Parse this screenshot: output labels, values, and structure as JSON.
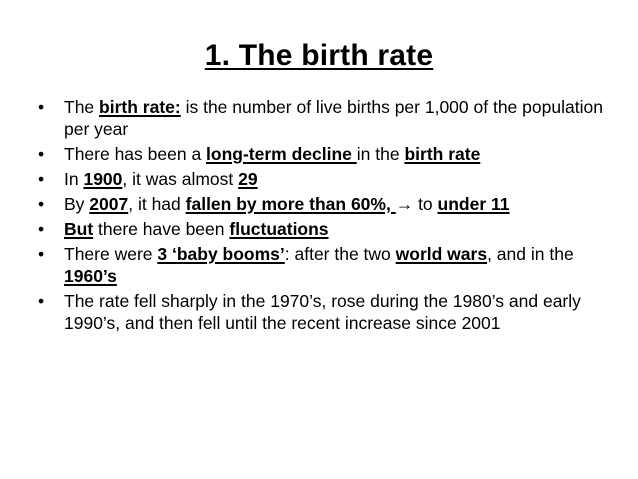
{
  "slide": {
    "title": "1. The birth rate",
    "bullet_glyph": "•",
    "bullets": [
      {
        "s1": "The ",
        "s2": "birth rate:",
        "s3": " is the number of live births per 1,000 of the population per year"
      },
      {
        "s1": "There has been a ",
        "s2": "long-term decline ",
        "s3": "in the ",
        "s4": "birth rate"
      },
      {
        "s1": "In ",
        "s2": "1900",
        "s3": ", it was almost ",
        "s4": "29"
      },
      {
        "s1": "By ",
        "s2": "2007",
        "s3": ", it had ",
        "s4": "fallen by more than 60%, ",
        "s5": " ",
        "arrow": "→",
        "s6": " to ",
        "s7": "under 11"
      },
      {
        "s1": "But",
        "s2": " there have been ",
        "s3": "fluctuations"
      },
      {
        "s1": "There were ",
        "s2": "3 ‘baby booms’",
        "s3": ": after the two ",
        "s4": "world wars",
        "s5": ", and in the ",
        "s6": "1960’s"
      },
      {
        "s1": "The rate fell sharply in the 1970’s, rose during the 1980’s and early 1990’s, and then fell until the recent increase since 2001"
      }
    ]
  }
}
